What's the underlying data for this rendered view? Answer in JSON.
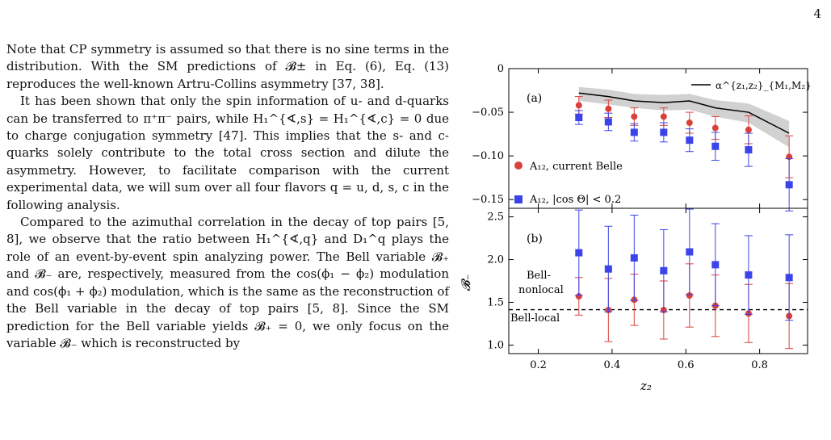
{
  "page_number": "4",
  "paragraphs": [
    "Note that CP symmetry is assumed so that there is no sine terms in the distribution. With the SM predictions of 𝓑± in Eq. (6), Eq. (13) reproduces the well-known Artru-Collins asymmetry [37, 38].",
    "It has been shown that only the spin information of u- and d-quarks can be transferred to π⁺π⁻ pairs, while H₁^{∢,s} = H₁^{∢,c} = 0 due to charge conjugation symmetry [47]. This implies that the s- and c-quarks solely contribute to the total cross section and dilute the asymmetry. However, to facilitate comparison with the current experimental data, we will sum over all four flavors q = u, d, s, c in the following analysis.",
    "Compared to the azimuthal correlation in the decay of top pairs [5, 8], we observe that the ratio between H₁^{∢,q} and D₁^q plays the role of an event-by-event spin analyzing power. The Bell variable 𝓑₊ and 𝓑₋ are, respectively, measured from the cos(ϕ₁ − ϕ₂) modulation and cos(ϕ₁ + ϕ₂) modulation, which is the same as the reconstruction of the Bell variable in the decay of top pairs [5, 8]. Since the SM prediction for the Bell variable yields 𝓑₊ = 0, we only focus on the variable 𝓑₋ which is reconstructed by"
  ],
  "figure": {
    "panel_a_label": "(a)",
    "panel_b_label": "(b)",
    "xlabel": "z₂",
    "ylabel": "𝓑₋",
    "legend_line": "α^{z₁,z₂}_{M₁,M₂}",
    "legend_circle": "A₁₂,  current Belle",
    "legend_square": "A₁₂,  |cos Θ| < 0.2",
    "bell_nonlocal_label_1": "Bell-",
    "bell_nonlocal_label_2": "nonlocal",
    "bell_local_label": "Bell-local",
    "colors": {
      "circle": "#d9413b",
      "square": "#3b44e8",
      "line": "#000000",
      "band": "#bdbdbd"
    }
  },
  "chart_data": [
    {
      "type": "scatter",
      "panel": "(a)",
      "x_ticks": [
        0.2,
        0.4,
        0.6,
        0.8
      ],
      "xlim": [
        0.12,
        0.93
      ],
      "ylim": [
        -0.16,
        0.0
      ],
      "y_ticks": [
        "0",
        "−0.05",
        "−0.10",
        "−0.15"
      ],
      "series": [
        {
          "name": "α^{z₁,z₂}_{M₁,M₂}",
          "style": "line-with-band",
          "x": [
            0.31,
            0.39,
            0.46,
            0.54,
            0.61,
            0.68,
            0.77,
            0.88
          ],
          "y": [
            -0.028,
            -0.032,
            -0.037,
            -0.039,
            -0.037,
            -0.045,
            -0.05,
            -0.074
          ],
          "band_low": [
            -0.037,
            -0.041,
            -0.045,
            -0.048,
            -0.047,
            -0.055,
            -0.062,
            -0.09
          ],
          "band_high": [
            -0.021,
            -0.024,
            -0.029,
            -0.03,
            -0.029,
            -0.036,
            -0.04,
            -0.06
          ]
        },
        {
          "name": "A₁₂,  current Belle",
          "style": "circle",
          "x": [
            0.31,
            0.39,
            0.46,
            0.54,
            0.61,
            0.68,
            0.77,
            0.88
          ],
          "y": [
            -0.042,
            -0.046,
            -0.055,
            -0.055,
            -0.062,
            -0.068,
            -0.07,
            -0.101
          ],
          "err": [
            0.01,
            0.01,
            0.01,
            0.01,
            0.012,
            0.013,
            0.016,
            0.024
          ]
        },
        {
          "name": "A₁₂,  |cos Θ| < 0.2",
          "style": "square",
          "x": [
            0.31,
            0.39,
            0.46,
            0.54,
            0.61,
            0.68,
            0.77,
            0.88
          ],
          "y": [
            -0.056,
            -0.061,
            -0.073,
            -0.073,
            -0.082,
            -0.089,
            -0.093,
            -0.133
          ],
          "err": [
            0.008,
            0.01,
            0.01,
            0.011,
            0.013,
            0.016,
            0.019,
            0.03
          ]
        }
      ]
    },
    {
      "type": "scatter",
      "panel": "(b)",
      "xlabel": "z₂",
      "ylabel": "𝓑₋",
      "x_ticks": [
        0.2,
        0.4,
        0.6,
        0.8
      ],
      "xlim": [
        0.12,
        0.93
      ],
      "ylim": [
        0.9,
        2.6
      ],
      "y_ticks": [
        1.0,
        1.5,
        2.0,
        2.5
      ],
      "reference_line": 1.414,
      "series": [
        {
          "name": "A₁₂,  current Belle",
          "style": "circle",
          "x": [
            0.31,
            0.39,
            0.46,
            0.54,
            0.61,
            0.68,
            0.77,
            0.88
          ],
          "y": [
            1.57,
            1.41,
            1.53,
            1.41,
            1.58,
            1.46,
            1.37,
            1.34
          ],
          "err_low": [
            0.22,
            0.37,
            0.3,
            0.34,
            0.37,
            0.36,
            0.34,
            0.38
          ],
          "err_high": [
            0.22,
            0.37,
            0.3,
            0.34,
            0.37,
            0.36,
            0.34,
            0.38
          ]
        },
        {
          "name": "A₁₂,  |cos Θ| < 0.2",
          "style": "square",
          "x": [
            0.31,
            0.39,
            0.46,
            0.54,
            0.61,
            0.68,
            0.77,
            0.88
          ],
          "y": [
            2.08,
            1.89,
            2.02,
            1.87,
            2.09,
            1.94,
            1.82,
            1.79
          ],
          "err_low": [
            0.5,
            0.5,
            0.5,
            0.48,
            0.5,
            0.48,
            0.46,
            0.5
          ],
          "err_high": [
            0.5,
            0.5,
            0.5,
            0.48,
            0.5,
            0.48,
            0.46,
            0.5
          ]
        }
      ]
    }
  ]
}
